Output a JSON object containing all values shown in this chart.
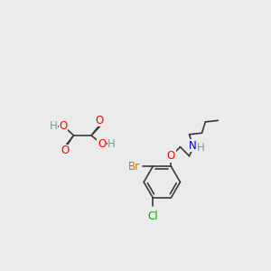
{
  "bg_color": "#ebebeb",
  "bond_color": "#3a3a3a",
  "line_width": 1.2,
  "atom_colors": {
    "O": "#ff0000",
    "N": "#0000cc",
    "Br": "#cc7700",
    "Cl": "#00aa00",
    "H": "#7a9a9a",
    "C": "#3a3a3a"
  },
  "font_size": 8.5
}
